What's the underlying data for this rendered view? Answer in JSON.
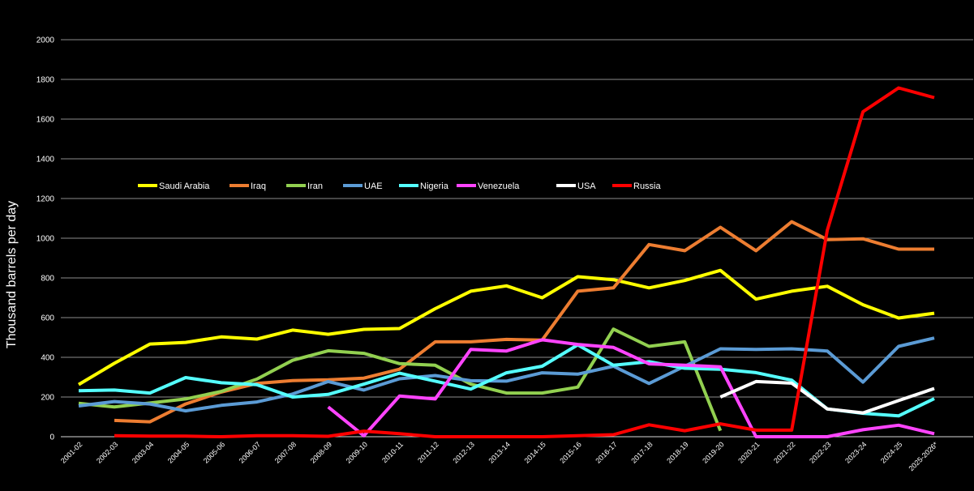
{
  "chart_data": {
    "type": "line",
    "title": "",
    "xlabel": "",
    "ylabel": "Thousand barrels per day",
    "ylim": [
      0,
      2000
    ],
    "yticks": [
      0,
      200,
      400,
      600,
      800,
      1000,
      1200,
      1400,
      1600,
      1800,
      2000
    ],
    "grid": true,
    "legend_position": "upper-left inside plot",
    "categories": [
      "2001-02",
      "2002-03",
      "2003-04",
      "2004-05",
      "2005-06",
      "2006-07",
      "2007-08",
      "2008-09",
      "2009-10",
      "2010-11",
      "2011-12",
      "2012-13",
      "2013-14",
      "2014-15",
      "2015-16",
      "2016-17",
      "2017-18",
      "2018-19",
      "2019-20",
      "2020-21",
      "2021-22",
      "2022-23",
      "2023-24",
      "2024-25",
      "2025-2026*"
    ],
    "series": [
      {
        "name": "Saudi Arabia",
        "color": "#ffff00",
        "values": [
          263,
          370,
          467,
          475,
          503,
          492,
          537,
          516,
          541,
          545,
          645,
          733,
          760,
          700,
          806,
          791,
          750,
          787,
          838,
          693,
          733,
          758,
          665,
          598,
          622
        ]
      },
      {
        "name": "Iraq",
        "color": "#ed7d31",
        "values": [
          null,
          82,
          75,
          165,
          225,
          268,
          283,
          287,
          295,
          340,
          478,
          478,
          490,
          487,
          733,
          750,
          968,
          937,
          1055,
          937,
          1083,
          993,
          997,
          945,
          945
        ]
      },
      {
        "name": "Iran",
        "color": "#92d050",
        "values": [
          168,
          150,
          170,
          190,
          228,
          290,
          385,
          433,
          420,
          368,
          360,
          265,
          220,
          220,
          250,
          542,
          455,
          478,
          30,
          null,
          null,
          null,
          null,
          null,
          null
        ]
      },
      {
        "name": "UAE",
        "color": "#5b9bd5",
        "values": [
          155,
          177,
          165,
          130,
          158,
          175,
          215,
          278,
          235,
          292,
          308,
          282,
          280,
          322,
          315,
          355,
          268,
          355,
          443,
          440,
          443,
          432,
          275,
          455,
          497
        ]
      },
      {
        "name": "Nigeria",
        "color": "#55ffff",
        "values": [
          232,
          235,
          220,
          298,
          272,
          262,
          200,
          213,
          265,
          320,
          280,
          240,
          322,
          355,
          463,
          360,
          378,
          345,
          340,
          323,
          285,
          140,
          118,
          105,
          192
        ]
      },
      {
        "name": "Venezuela",
        "color": "#ff44ff",
        "values": [
          null,
          null,
          null,
          null,
          null,
          null,
          null,
          150,
          5,
          205,
          190,
          440,
          432,
          488,
          465,
          450,
          367,
          360,
          352,
          0,
          0,
          0,
          35,
          58,
          15
        ]
      },
      {
        "name": "USA",
        "color": "#ffffff",
        "values": [
          null,
          null,
          null,
          null,
          null,
          null,
          null,
          null,
          null,
          null,
          null,
          null,
          null,
          null,
          null,
          null,
          null,
          null,
          200,
          278,
          270,
          140,
          120,
          182,
          243
        ]
      },
      {
        "name": "Russia",
        "color": "#ff0000",
        "values": [
          null,
          5,
          3,
          3,
          0,
          5,
          5,
          2,
          28,
          15,
          0,
          0,
          0,
          0,
          5,
          10,
          60,
          30,
          65,
          33,
          33,
          1040,
          1637,
          1757,
          1708
        ]
      }
    ]
  }
}
